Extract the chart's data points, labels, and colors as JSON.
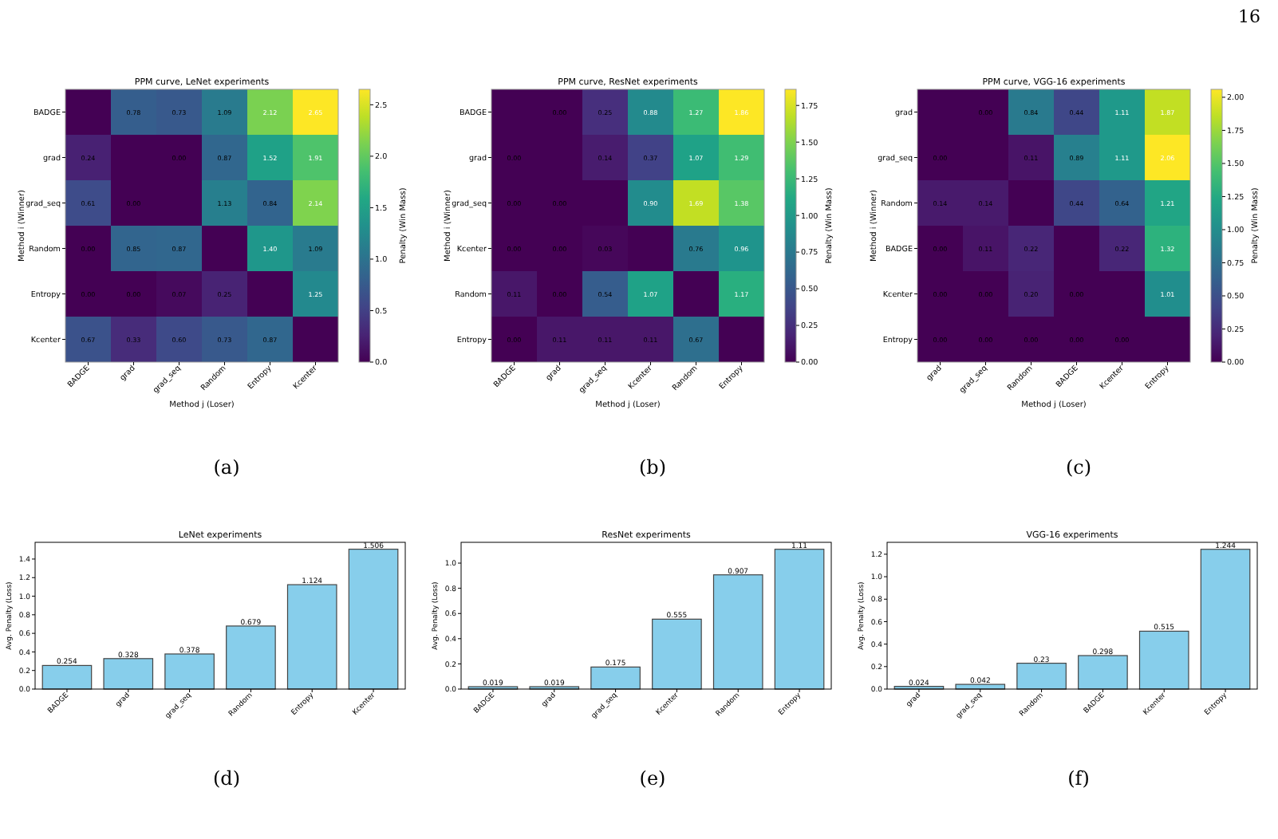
{
  "chart_data": [
    {
      "type": "heatmap",
      "title": "PPM curve, LeNet  experiments",
      "xlabel": "Method j (Loser)",
      "ylabel": "Method i (Winner)",
      "clabel": "Penalty (Win Mass)",
      "annotations": [
        "(a)",
        "16"
      ],
      "categories": [
        "BADGE",
        "grad",
        "grad_seq",
        "Random",
        "Entropy",
        "Kcenter"
      ],
      "y_categories": [
        "BADGE",
        "grad",
        "grad_seq",
        "Random",
        "Entropy",
        "Kcenter"
      ],
      "cells": [
        [
          0,
          0.78,
          0.73,
          1.09,
          2.12,
          2.65
        ],
        [
          0.24,
          0,
          0.0,
          0.87,
          1.52,
          1.91
        ],
        [
          0.61,
          0.0,
          0,
          1.13,
          0.84,
          2.14
        ],
        [
          0.0,
          0.85,
          0.87,
          0,
          1.4,
          1.09
        ],
        [
          0.0,
          0.0,
          0.07,
          0.25,
          0,
          1.25
        ],
        [
          0.67,
          0.33,
          0.6,
          0.73,
          0.87,
          0
        ]
      ],
      "cell_labels": [
        [
          null,
          "0.78",
          "0.73",
          "1.09",
          "2.12",
          "2.65"
        ],
        [
          "0.24",
          null,
          "0.00",
          "0.87",
          "1.52",
          "1.91"
        ],
        [
          "0.61",
          "0.00",
          null,
          "1.13",
          "0.84",
          "2.14"
        ],
        [
          "0.00",
          "0.85",
          "0.87",
          null,
          "1.40",
          "1.09"
        ],
        [
          "0.00",
          "0.00",
          "0.07",
          "0.25",
          null,
          "1.25"
        ],
        [
          "0.67",
          "0.33",
          "0.60",
          "0.73",
          "0.87",
          null
        ]
      ],
      "clim": [
        0,
        2.65
      ],
      "cticks": [
        {
          "value": 0,
          "label": "0.0"
        },
        {
          "value": 0.5,
          "label": "0.5"
        },
        {
          "value": 1,
          "label": "1.0"
        },
        {
          "value": 1.5,
          "label": "1.5"
        },
        {
          "value": 2,
          "label": "2.0"
        },
        {
          "value": 2.5,
          "label": "2.5"
        }
      ]
    },
    {
      "type": "heatmap",
      "title": "PPM curve, ResNet  experiments",
      "xlabel": "Method j (Loser)",
      "ylabel": "Method i (Winner)",
      "clabel": "Penalty (Win Mass)",
      "annotations": [
        "(b)"
      ],
      "categories": [
        "BADGE",
        "grad",
        "grad_seq",
        "Kcenter",
        "Random",
        "Entropy"
      ],
      "y_categories": [
        "BADGE",
        "grad",
        "grad_seq",
        "Kcenter",
        "Random",
        "Entropy"
      ],
      "cells": [
        [
          0,
          0.0,
          0.25,
          0.88,
          1.27,
          1.86
        ],
        [
          0.0,
          0,
          0.14,
          0.37,
          1.07,
          1.29
        ],
        [
          0.0,
          0.0,
          0,
          0.9,
          1.69,
          1.38
        ],
        [
          0.0,
          0.0,
          0.03,
          0,
          0.76,
          0.96
        ],
        [
          0.11,
          0.0,
          0.54,
          1.07,
          0,
          1.17
        ],
        [
          0.0,
          0.11,
          0.11,
          0.11,
          0.67,
          0
        ]
      ],
      "cell_labels": [
        [
          null,
          "0.00",
          "0.25",
          "0.88",
          "1.27",
          "1.86"
        ],
        [
          "0.00",
          null,
          "0.14",
          "0.37",
          "1.07",
          "1.29"
        ],
        [
          "0.00",
          "0.00",
          null,
          "0.90",
          "1.69",
          "1.38"
        ],
        [
          "0.00",
          "0.00",
          "0.03",
          null,
          "0.76",
          "0.96"
        ],
        [
          "0.11",
          "0.00",
          "0.54",
          "1.07",
          null,
          "1.17"
        ],
        [
          "0.00",
          "0.11",
          "0.11",
          "0.11",
          "0.67",
          null
        ]
      ],
      "clim": [
        0,
        1.86
      ],
      "cticks": [
        {
          "value": 0,
          "label": "0.00"
        },
        {
          "value": 0.25,
          "label": "0.25"
        },
        {
          "value": 0.5,
          "label": "0.50"
        },
        {
          "value": 0.75,
          "label": "0.75"
        },
        {
          "value": 1,
          "label": "1.00"
        },
        {
          "value": 1.25,
          "label": "1.25"
        },
        {
          "value": 1.5,
          "label": "1.50"
        },
        {
          "value": 1.75,
          "label": "1.75"
        }
      ]
    },
    {
      "type": "heatmap",
      "title": "PPM curve, VGG-16  experiments",
      "xlabel": "Method j (Loser)",
      "ylabel": "Method i (Winner)",
      "clabel": "Penalty (Win Mass)",
      "annotations": [
        "(c)"
      ],
      "categories": [
        "grad",
        "grad_seq",
        "Random",
        "BADGE",
        "Kcenter",
        "Entropy"
      ],
      "y_categories": [
        "grad",
        "grad_seq",
        "Random",
        "BADGE",
        "Kcenter",
        "Entropy"
      ],
      "cells": [
        [
          0,
          0.0,
          0.84,
          0.44,
          1.11,
          1.87
        ],
        [
          0.0,
          0,
          0.11,
          0.89,
          1.11,
          2.06
        ],
        [
          0.14,
          0.14,
          0,
          0.44,
          0.64,
          1.21
        ],
        [
          0.0,
          0.11,
          0.22,
          0,
          0.22,
          1.32
        ],
        [
          0.0,
          0.0,
          0.2,
          0.0,
          0,
          1.01
        ],
        [
          0.0,
          0.0,
          0.0,
          0.0,
          0.0,
          0
        ]
      ],
      "cell_labels": [
        [
          null,
          "0.00",
          "0.84",
          "0.44",
          "1.11",
          "1.87"
        ],
        [
          "0.00",
          null,
          "0.11",
          "0.89",
          "1.11",
          "2.06"
        ],
        [
          "0.14",
          "0.14",
          null,
          "0.44",
          "0.64",
          "1.21"
        ],
        [
          "0.00",
          "0.11",
          "0.22",
          null,
          "0.22",
          "1.32"
        ],
        [
          "0.00",
          "0.00",
          "0.20",
          "0.00",
          null,
          "1.01"
        ],
        [
          "0.00",
          "0.00",
          "0.00",
          "0.00",
          "0.00",
          null
        ]
      ],
      "clim": [
        0,
        2.06
      ],
      "cticks": [
        {
          "value": 0,
          "label": "0.00"
        },
        {
          "value": 0.25,
          "label": "0.25"
        },
        {
          "value": 0.5,
          "label": "0.50"
        },
        {
          "value": 0.75,
          "label": "0.75"
        },
        {
          "value": 1,
          "label": "1.00"
        },
        {
          "value": 1.25,
          "label": "1.25"
        },
        {
          "value": 1.5,
          "label": "1.50"
        },
        {
          "value": 1.75,
          "label": "1.75"
        },
        {
          "value": 2,
          "label": "2.00"
        }
      ]
    },
    {
      "type": "bar",
      "title": "LeNet  experiments",
      "ylabel": "Avg. Penalty (Loss)",
      "annotations": [
        "(d)"
      ],
      "categories": [
        "BADGE",
        "grad",
        "grad_seq",
        "Random",
        "Entropy",
        "Kcenter"
      ],
      "values": [
        0.254,
        0.328,
        0.378,
        0.679,
        1.124,
        1.506
      ],
      "color": "#87ceeb",
      "data_labels": true,
      "ylim": [
        0,
        1.58
      ],
      "yticks": [
        {
          "value": 0,
          "label": "0.0"
        },
        {
          "value": 0.2,
          "label": "0.2"
        },
        {
          "value": 0.4,
          "label": "0.4"
        },
        {
          "value": 0.6,
          "label": "0.6"
        },
        {
          "value": 0.8,
          "label": "0.8"
        },
        {
          "value": 1,
          "label": "1.0"
        },
        {
          "value": 1.2,
          "label": "1.2"
        },
        {
          "value": 1.4,
          "label": "1.4"
        }
      ]
    },
    {
      "type": "bar",
      "title": "ResNet  experiments",
      "ylabel": "Avg. Penalty (Loss)",
      "annotations": [
        "(e)"
      ],
      "categories": [
        "BADGE",
        "grad",
        "grad_seq",
        "Kcenter",
        "Random",
        "Entropy"
      ],
      "values": [
        0.019,
        0.019,
        0.175,
        0.555,
        0.907,
        1.11
      ],
      "color": "#87ceeb",
      "data_labels": true,
      "ylim": [
        0,
        1.165
      ],
      "yticks": [
        {
          "value": 0,
          "label": "0.0"
        },
        {
          "value": 0.2,
          "label": "0.2"
        },
        {
          "value": 0.4,
          "label": "0.4"
        },
        {
          "value": 0.6,
          "label": "0.6"
        },
        {
          "value": 0.8,
          "label": "0.8"
        },
        {
          "value": 1,
          "label": "1.0"
        }
      ]
    },
    {
      "type": "bar",
      "title": "VGG-16  experiments",
      "ylabel": "Avg. Penalty (Loss)",
      "annotations": [
        "(f)"
      ],
      "categories": [
        "grad",
        "grad_seq",
        "Random",
        "BADGE",
        "Kcenter",
        "Entropy"
      ],
      "values": [
        0.024,
        0.042,
        0.23,
        0.298,
        0.515,
        1.244
      ],
      "color": "#87ceeb",
      "data_labels": true,
      "ylim": [
        0,
        1.306
      ],
      "yticks": [
        {
          "value": 0,
          "label": "0.0"
        },
        {
          "value": 0.2,
          "label": "0.2"
        },
        {
          "value": 0.4,
          "label": "0.4"
        },
        {
          "value": 0.6,
          "label": "0.6"
        },
        {
          "value": 0.8,
          "label": "0.8"
        },
        {
          "value": 1,
          "label": "1.0"
        },
        {
          "value": 1.2,
          "label": "1.2"
        }
      ]
    }
  ]
}
